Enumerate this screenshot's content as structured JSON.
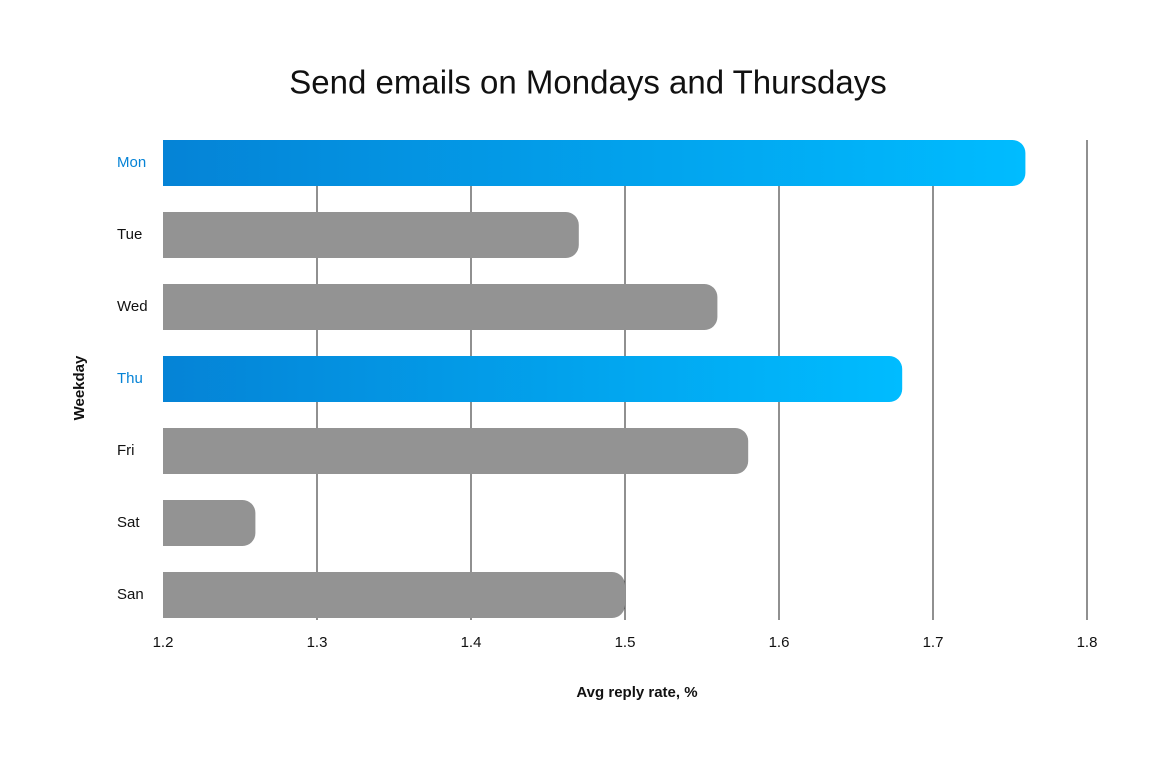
{
  "chart_data": {
    "type": "barh",
    "title": "Send emails on Mondays and Thursdays",
    "x_label": "Avg reply rate, %",
    "y_label": "Weekday",
    "categories": [
      "Mon",
      "Tue",
      "Wed",
      "Thu",
      "Fri",
      "Sat",
      "San"
    ],
    "values": [
      1.76,
      1.47,
      1.56,
      1.68,
      1.58,
      1.26,
      1.5
    ],
    "highlighted": [
      true,
      false,
      false,
      true,
      false,
      false,
      false
    ],
    "color": "#939393",
    "highlight_color": "#00bcff",
    "highlight_color_start": "#0583d6",
    "xlim": [
      1.2,
      1.8
    ],
    "xticks": [
      1.2,
      1.3,
      1.4,
      1.5,
      1.6,
      1.7,
      1.8
    ],
    "grid": true
  }
}
